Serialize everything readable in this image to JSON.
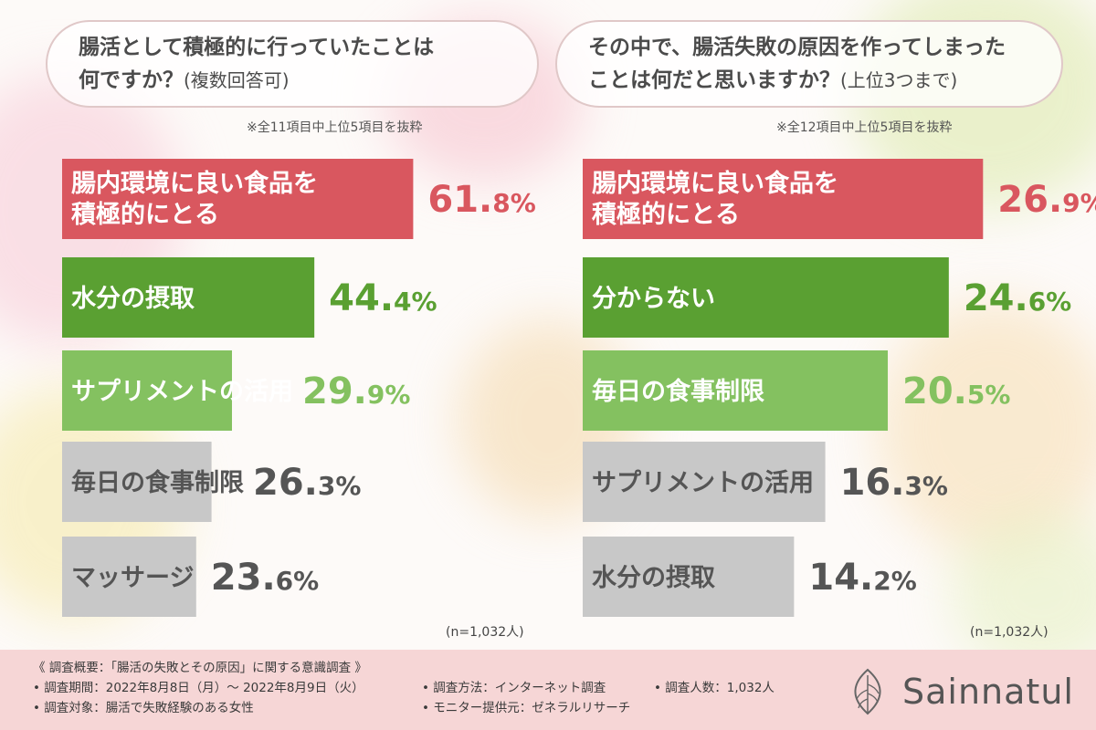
{
  "left": {
    "question_line1": "腸活として積極的に行っていたことは",
    "question_line2": "何ですか？",
    "question_sub": "(複数回答可)",
    "note": "※全11項目中上位5項目を抜粋",
    "n_label": "(n=1,032人)"
  },
  "right": {
    "question_line1": "その中で、腸活失敗の原因を作ってしまった",
    "question_line2": "ことは何だと思いますか？",
    "question_sub": "(上位3つまで)",
    "note": "※全12項目中上位5項目を抜粋",
    "n_label": "(n=1,032人)"
  },
  "chart_data": [
    {
      "type": "bar",
      "orientation": "horizontal",
      "categories": [
        [
          "腸内環境に良い食品を",
          "積極的にとる"
        ],
        [
          "水分の摂取"
        ],
        [
          "サプリメントの活用"
        ],
        [
          "毎日の食事制限"
        ],
        [
          "マッサージ"
        ]
      ],
      "values": [
        61.8,
        44.4,
        29.9,
        26.3,
        23.6
      ],
      "value_labels": [
        [
          "61.",
          "8",
          "%"
        ],
        [
          "44.",
          "4",
          "%"
        ],
        [
          "29.",
          "9",
          "%"
        ],
        [
          "26.",
          "3",
          "%"
        ],
        [
          "23.",
          "6",
          "%"
        ]
      ],
      "xlim": [
        0,
        100
      ],
      "colors": [
        "#d9575f",
        "#5aa032",
        "#84c160",
        "#c8c8c8",
        "#c8c8c8"
      ],
      "value_colors": [
        "#d9575f",
        "#5aa032",
        "#84c160",
        "#555555",
        "#555555"
      ],
      "label_colors": [
        "#ffffff",
        "#ffffff",
        "#ffffff",
        "#555555",
        "#555555"
      ]
    },
    {
      "type": "bar",
      "orientation": "horizontal",
      "categories": [
        [
          "腸内環境に良い食品を",
          "積極的にとる"
        ],
        [
          "分からない"
        ],
        [
          "毎日の食事制限"
        ],
        [
          "サプリメントの活用"
        ],
        [
          "水分の摂取"
        ]
      ],
      "values": [
        26.9,
        24.6,
        20.5,
        16.3,
        14.2
      ],
      "value_labels": [
        [
          "26.",
          "9",
          "%"
        ],
        [
          "24.",
          "6",
          "%"
        ],
        [
          "20.",
          "5",
          "%"
        ],
        [
          "16.",
          "3",
          "%"
        ],
        [
          "14.",
          "2",
          "%"
        ]
      ],
      "xlim": [
        0,
        31.3
      ],
      "colors": [
        "#d9575f",
        "#5aa032",
        "#84c160",
        "#c8c8c8",
        "#c8c8c8"
      ],
      "value_colors": [
        "#d9575f",
        "#5aa032",
        "#84c160",
        "#555555",
        "#555555"
      ],
      "label_colors": [
        "#ffffff",
        "#ffffff",
        "#ffffff",
        "#555555",
        "#555555"
      ]
    }
  ],
  "footer": {
    "title": "《 調査概要：「腸活の失敗とその原因」に関する意識調査 》",
    "period": "• 調査期間：2022年8月8日（月）～ 2022年8月9日（火）",
    "target": "• 調査対象：腸活で失敗経験のある女性",
    "method": "• 調査方法：インターネット調査",
    "provider": "• モニター提供元：ゼネラルリサーチ",
    "count": "• 調査人数：1,032人",
    "brand": "Sainnatul"
  }
}
